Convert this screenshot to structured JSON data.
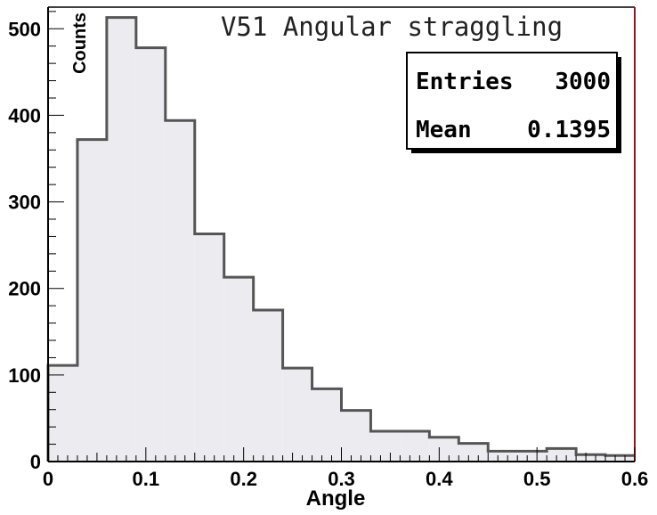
{
  "chart_data": {
    "type": "bar",
    "title": "V51 Angular straggling",
    "xlabel": "Angle",
    "ylabel": "Counts",
    "xlim": [
      0,
      0.6
    ],
    "ylim": [
      0,
      525
    ],
    "bin_width": 0.03,
    "bin_edges": [
      0,
      0.03,
      0.06,
      0.09,
      0.12,
      0.15,
      0.18,
      0.21,
      0.24,
      0.27,
      0.3,
      0.33,
      0.36,
      0.39,
      0.42,
      0.45,
      0.48,
      0.51,
      0.54,
      0.57,
      0.6
    ],
    "values": [
      111,
      372,
      513,
      478,
      394,
      263,
      213,
      175,
      108,
      84,
      59,
      35,
      35,
      28,
      21,
      12,
      12,
      15,
      8,
      7
    ],
    "x_ticks": [
      0,
      0.1,
      0.2,
      0.3,
      0.4,
      0.5,
      0.6
    ],
    "x_tick_labels": [
      "0",
      "0.1",
      "0.2",
      "0.3",
      "0.4",
      "0.5",
      "0.6"
    ],
    "y_ticks": [
      0,
      100,
      200,
      300,
      400,
      500
    ],
    "y_tick_labels": [
      "0",
      "100",
      "200",
      "300",
      "400",
      "500"
    ],
    "grid": false,
    "legend": "top-right",
    "colors": {
      "fill": "#ececf0",
      "line": "#555555",
      "frame_right": "#8b1a1a"
    },
    "stats": [
      {
        "label": "Entries",
        "value": "3000"
      },
      {
        "label": "Mean",
        "value": "0.1395"
      }
    ]
  }
}
